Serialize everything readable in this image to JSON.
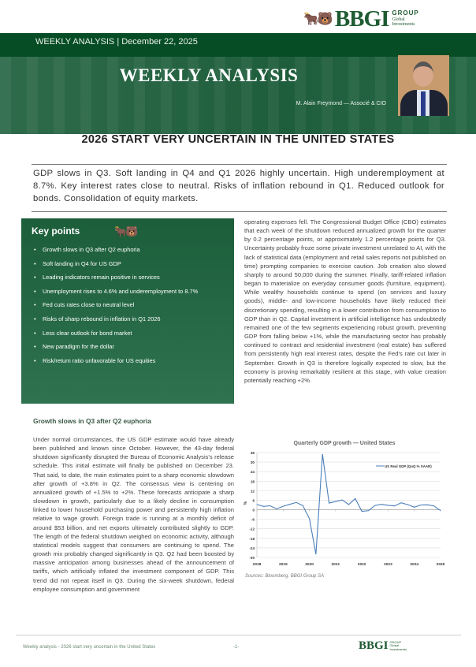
{
  "brand": {
    "name": "BBGI",
    "group": "GROUP",
    "tag1": "Global",
    "tag2": "Investments"
  },
  "header": {
    "band_text": "WEEKLY ANALYSIS | December 22, 2025",
    "banner_title": "WEEKLY ANALYSIS",
    "author": "M. Alain Freymond — Associé & CIO"
  },
  "title": "2026 START VERY UNCERTAIN IN THE UNITED STATES",
  "summary": "GDP slows in Q3. Soft landing in Q4 and Q1 2026 highly uncertain. High underemployment at 8.7%. Key interest rates close to neutral. Risks of inflation rebound in Q1. Reduced outlook for bonds. Consolidation of equity markets.",
  "key_points": {
    "heading": "Key points",
    "items": [
      "Growth slows in Q3 after Q2 euphoria",
      "Soft landing in Q4 for US GDP",
      "Leading indicators remain positive in services",
      "Unemployment rises to 4.6% and underemployment to 8.7%",
      "Fed cuts rates close to neutral level",
      "Risks of sharp rebound in inflation in Q1 2026",
      "Less clear outlook for bond market",
      "New paradigm for the dollar",
      "Risk/return ratio unfavorable for US equities"
    ]
  },
  "section_heading": "Growth slows in Q3 after Q2 euphoria",
  "body_left": "Under normal circumstances, the US GDP estimate would have already been published and known since October. However, the 43-day federal shutdown significantly disrupted the Bureau of Economic Analysis's release schedule. This initial estimate will finally be published on December 23. That said, to date, the main estimates point to a sharp economic slowdown after growth of +3.8% in Q2. The consensus view is centering on annualized growth of +1.5% to +2%. These forecasts anticipate a sharp slowdown in growth, particularly due to a likely decline in consumption linked to lower household purchasing power and persistently high inflation relative to wage growth. Foreign trade is running at a monthly deficit of around $53 billion, and net exports ultimately contributed slightly to GDP. The length of the federal shutdown weighed on economic activity, although statistical models suggest that consumers are continuing to spend. The growth mix probably changed significantly in Q3. Q2 had been boosted by massive anticipation among businesses ahead of the announcement of tariffs, which artificially inflated the investment component of GDP. This trend did not repeat itself in Q3. During the six-week shutdown, federal employee consumption and government",
  "body_right": "operating expenses fell. The Congressional Budget Office (CBO) estimates that each week of the shutdown reduced annualized growth for the quarter by 0.2 percentage points, or approximately 1.2 percentage points for Q3. Uncertainty probably froze some private investment unrelated to AI, with the lack of statistical data (employment and retail sales reports not published on time) prompting companies to exercise caution. Job creation also slowed sharply to around 50,000 during the summer. Finally, tariff-related inflation began to materialize on everyday consumer goods (furniture, equipment). While wealthy households continue to spend (on services and luxury goods), middle- and low-income households have likely reduced their discretionary spending, resulting in a lower contribution from consumption to GDP than in Q2. Capital investment in artificial intelligence has undoubtedly remained one of the few segments experiencing robust growth, preventing GDP from falling below +1%, while the manufacturing sector has probably continued to contract and residential investment (real estate) has suffered from persistently high real interest rates, despite the Fed's rate cut later in September. Growth in Q3 is therefore logically expected to slow, but the economy is proving remarkably resilient at this stage, with value creation potentially reaching +2%.",
  "chart_data": {
    "type": "line",
    "title": "Quarterly GDP growth — United States",
    "ylabel": "%",
    "xlabel": "",
    "x_ticks": [
      "2018",
      "2019",
      "2020",
      "2021",
      "2022",
      "2023",
      "2024",
      "2025"
    ],
    "y_ticks": [
      36,
      30,
      24,
      18,
      12,
      6,
      0,
      -6,
      -12,
      -18,
      -24,
      -30
    ],
    "ylim": [
      -30,
      36
    ],
    "xlim": [
      2018,
      2025
    ],
    "grid": true,
    "legend": "top-right",
    "series": [
      {
        "name": "US Real GDP (QoQ % SAAR)",
        "color": "#4a7ebb",
        "x": [
          "2018Q1",
          "2018Q2",
          "2018Q3",
          "2018Q4",
          "2019Q1",
          "2019Q2",
          "2019Q3",
          "2019Q4",
          "2020Q1",
          "2020Q2",
          "2020Q3",
          "2020Q4",
          "2021Q1",
          "2021Q2",
          "2021Q3",
          "2021Q4",
          "2022Q1",
          "2022Q2",
          "2022Q3",
          "2022Q4",
          "2023Q1",
          "2023Q2",
          "2023Q3",
          "2023Q4",
          "2024Q1",
          "2024Q2",
          "2024Q3",
          "2024Q4",
          "2025Q1"
        ],
        "values": [
          3.3,
          2.1,
          2.5,
          0.6,
          2.2,
          3.4,
          4.6,
          2.6,
          -5.5,
          -28,
          35,
          4.2,
          5.2,
          6.2,
          3.3,
          7.0,
          -1.0,
          -0.6,
          2.7,
          3.4,
          2.8,
          2.4,
          4.4,
          3.2,
          1.6,
          3.0,
          3.1,
          2.4,
          -0.5
        ]
      }
    ]
  },
  "sources": "Sources: Bloomberg, BBGI Group SA",
  "footer": {
    "text": "Weekly analysis - 2026 start very uncertain in the United States",
    "page": "-1-"
  }
}
